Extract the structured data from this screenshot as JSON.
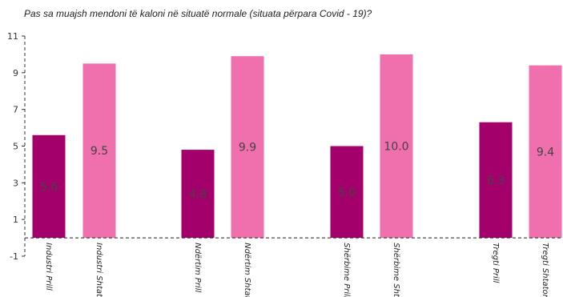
{
  "chart_data": {
    "type": "bar",
    "title": "Pas sa muajsh mendoni të kaloni në situatë normale (situata përpara Covid - 19)?",
    "xlabel": "",
    "ylabel": "",
    "ylim": [
      -1,
      11
    ],
    "yticks": [
      -1,
      1,
      3,
      5,
      7,
      9,
      11
    ],
    "categories": [
      "Industri Prill",
      "Industri Shtator",
      "Ndërtim Prill",
      "Ndërtim Shtator",
      "Shërbime Prill",
      "Shërbime Shtato",
      "Tregti Prill",
      "Tregti Shtator"
    ],
    "values": [
      5.6,
      9.5,
      4.8,
      9.9,
      5.0,
      10.0,
      6.3,
      9.4
    ],
    "value_labels": [
      "5.6",
      "9.5",
      "4.8",
      "9.9",
      "5.0",
      "10.0",
      "6.3",
      "9.4"
    ],
    "colors": {
      "prill": "#a4006b",
      "shtator": "#f06fad",
      "axis": "#333333",
      "label": "#444444"
    },
    "grid": false,
    "legend": "none"
  }
}
